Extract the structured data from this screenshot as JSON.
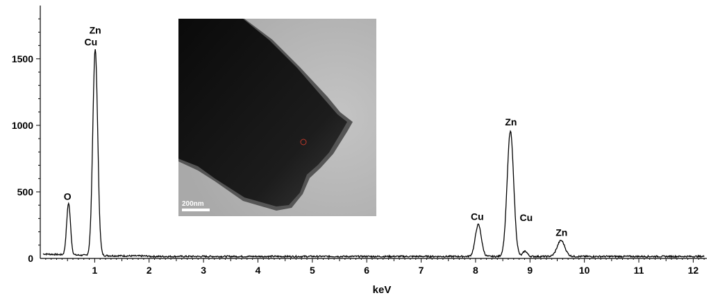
{
  "chart_data": {
    "type": "line",
    "title": "",
    "xlabel": "keV",
    "ylabel": "",
    "xlim": [
      0,
      12.25
    ],
    "ylim": [
      0,
      1900
    ],
    "xticks": [
      1,
      2,
      3,
      4,
      5,
      6,
      7,
      8,
      9,
      10,
      11,
      12
    ],
    "yticks": [
      0,
      500,
      1000,
      1500
    ],
    "grid": false,
    "legend": "none",
    "line_color": "#000000",
    "baseline": 15,
    "peaks": [
      {
        "x": 0.52,
        "y": 390,
        "sigma": 0.035
      },
      {
        "x": 1.01,
        "y": 1550,
        "sigma": 0.045
      },
      {
        "x": 8.05,
        "y": 240,
        "sigma": 0.055
      },
      {
        "x": 8.64,
        "y": 940,
        "sigma": 0.06
      },
      {
        "x": 8.91,
        "y": 40,
        "sigma": 0.04
      },
      {
        "x": 9.57,
        "y": 120,
        "sigma": 0.07
      }
    ],
    "annotations": [
      {
        "text": "Zn",
        "x": 1.01,
        "y": 1690
      },
      {
        "text": "Cu",
        "x": 0.93,
        "y": 1600
      },
      {
        "text": "O",
        "x": 0.5,
        "y": 440
      },
      {
        "text": "Cu",
        "x": 8.03,
        "y": 290
      },
      {
        "text": "Zn",
        "x": 8.65,
        "y": 1000
      },
      {
        "text": "Cu",
        "x": 8.93,
        "y": 280
      },
      {
        "text": "Zn",
        "x": 9.58,
        "y": 170
      }
    ]
  },
  "inset": {
    "scale_bar_label": "200nm",
    "marker_color": "#c0392b"
  }
}
